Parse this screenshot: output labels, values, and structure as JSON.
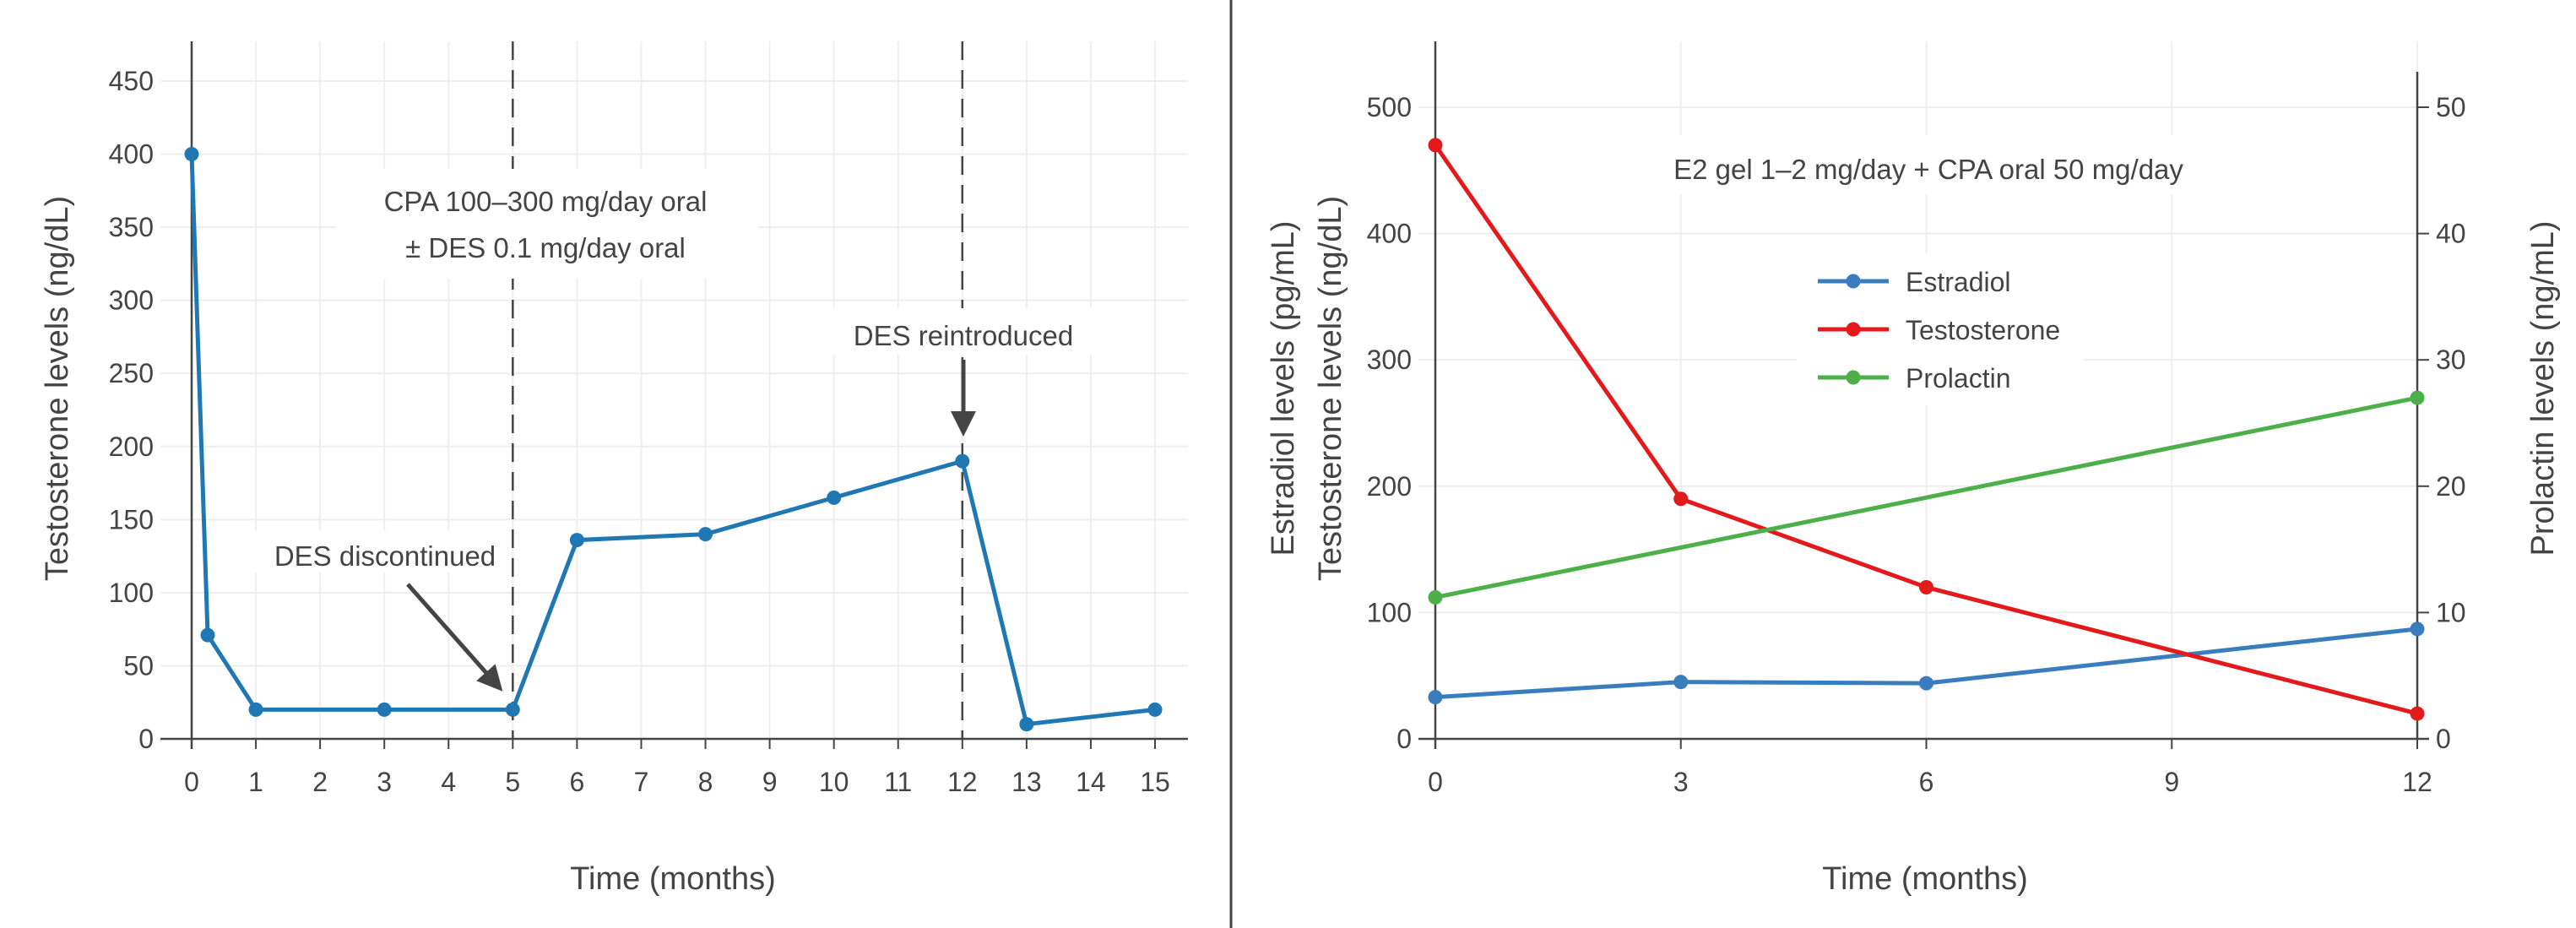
{
  "chart_data": [
    {
      "type": "line",
      "title": "",
      "xlabel": "Time (months)",
      "ylabel": "Testosterone levels (ng/dL)",
      "xlim": [
        -0.5,
        15.5
      ],
      "ylim": [
        -12,
        477
      ],
      "xticks": [
        0,
        1,
        2,
        3,
        4,
        5,
        6,
        7,
        8,
        9,
        10,
        11,
        12,
        13,
        14,
        15
      ],
      "yticks": [
        0,
        50,
        100,
        150,
        200,
        250,
        300,
        350,
        400,
        450
      ],
      "grid": true,
      "series": [
        {
          "color": "#1f77b4",
          "x": [
            0,
            0.25,
            1,
            3,
            5,
            6,
            8,
            10,
            12,
            13,
            15
          ],
          "y": [
            400,
            71,
            20,
            20,
            20,
            136,
            140,
            165,
            190,
            10,
            20
          ]
        }
      ],
      "vlines": [
        5,
        12
      ],
      "annotations": [
        {
          "text": [
            "CPA 100–300 mg/day oral",
            "± DES 0.1 mg/day oral"
          ]
        },
        {
          "text": "DES discontinued",
          "points_to": [
            5,
            20
          ]
        },
        {
          "text": "DES reintroduced",
          "points_to": [
            12,
            190
          ]
        }
      ]
    },
    {
      "type": "line",
      "title": "",
      "xlabel": "Time (months)",
      "ylabel": [
        "Estradiol levels (pg/mL)",
        "Testosterone levels (ng/dL)"
      ],
      "y2label": "Prolactin levels (ng/mL)",
      "xlim": [
        0,
        12
      ],
      "ylim": [
        0,
        552
      ],
      "y2lim": [
        0,
        55.2
      ],
      "xticks": [
        0,
        3,
        6,
        9,
        12
      ],
      "yticks": [
        0,
        100,
        200,
        300,
        400,
        500
      ],
      "y2ticks": [
        0,
        10,
        20,
        30,
        40,
        50
      ],
      "grid": true,
      "legend": "center",
      "annotation": "E2 gel 1–2 mg/day + CPA oral 50 mg/day",
      "series": [
        {
          "name": "Estradiol",
          "color": "#3a7dbf",
          "axis": "left",
          "x": [
            0,
            3,
            6,
            12
          ],
          "y": [
            33,
            45,
            44,
            87
          ]
        },
        {
          "name": "Testosterone",
          "color": "#e31a1c",
          "axis": "left",
          "x": [
            0,
            3,
            6,
            12
          ],
          "y": [
            470,
            190,
            120,
            20
          ]
        },
        {
          "name": "Prolactin",
          "color": "#4daf4a",
          "axis": "right",
          "x": [
            0,
            12
          ],
          "y": [
            11.2,
            27
          ]
        }
      ]
    }
  ]
}
